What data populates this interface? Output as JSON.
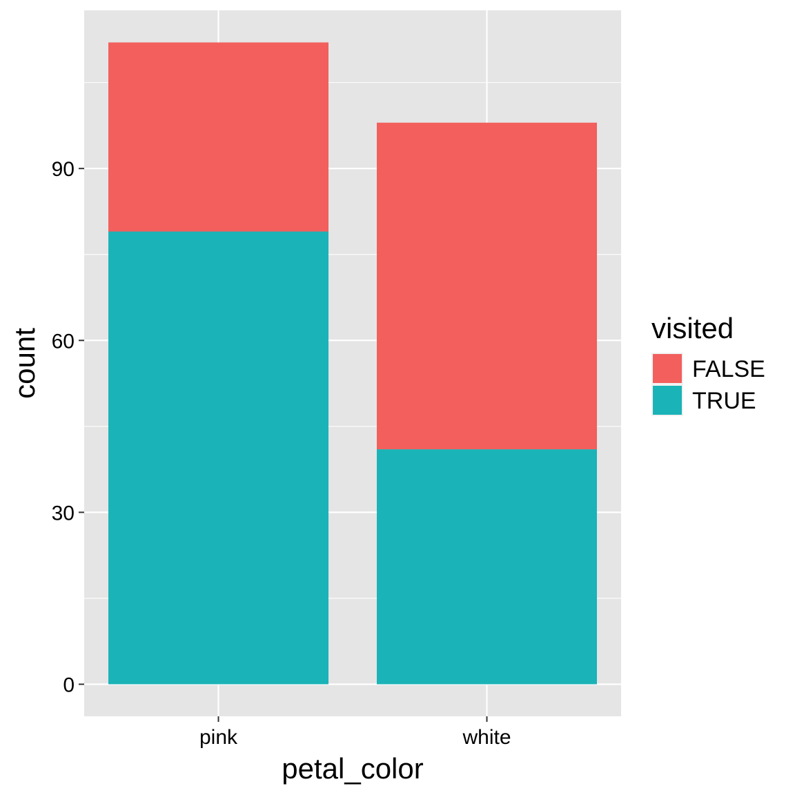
{
  "chart_data": {
    "type": "bar",
    "stacked": true,
    "categories": [
      "pink",
      "white"
    ],
    "series": [
      {
        "name": "FALSE",
        "values": [
          33,
          57
        ],
        "color": "#F25F5C"
      },
      {
        "name": "TRUE",
        "values": [
          79,
          41
        ],
        "color": "#1AB3B8"
      }
    ],
    "title": "",
    "xlabel": "petal_color",
    "ylabel": "count",
    "ylim": [
      -5.6,
      117.6
    ],
    "yticks": [
      0,
      30,
      60,
      90
    ],
    "grid": true,
    "panel_background": "#E5E5E5",
    "gridline_color": "#FFFFFF",
    "legend": {
      "title": "visited",
      "position": "right"
    }
  }
}
